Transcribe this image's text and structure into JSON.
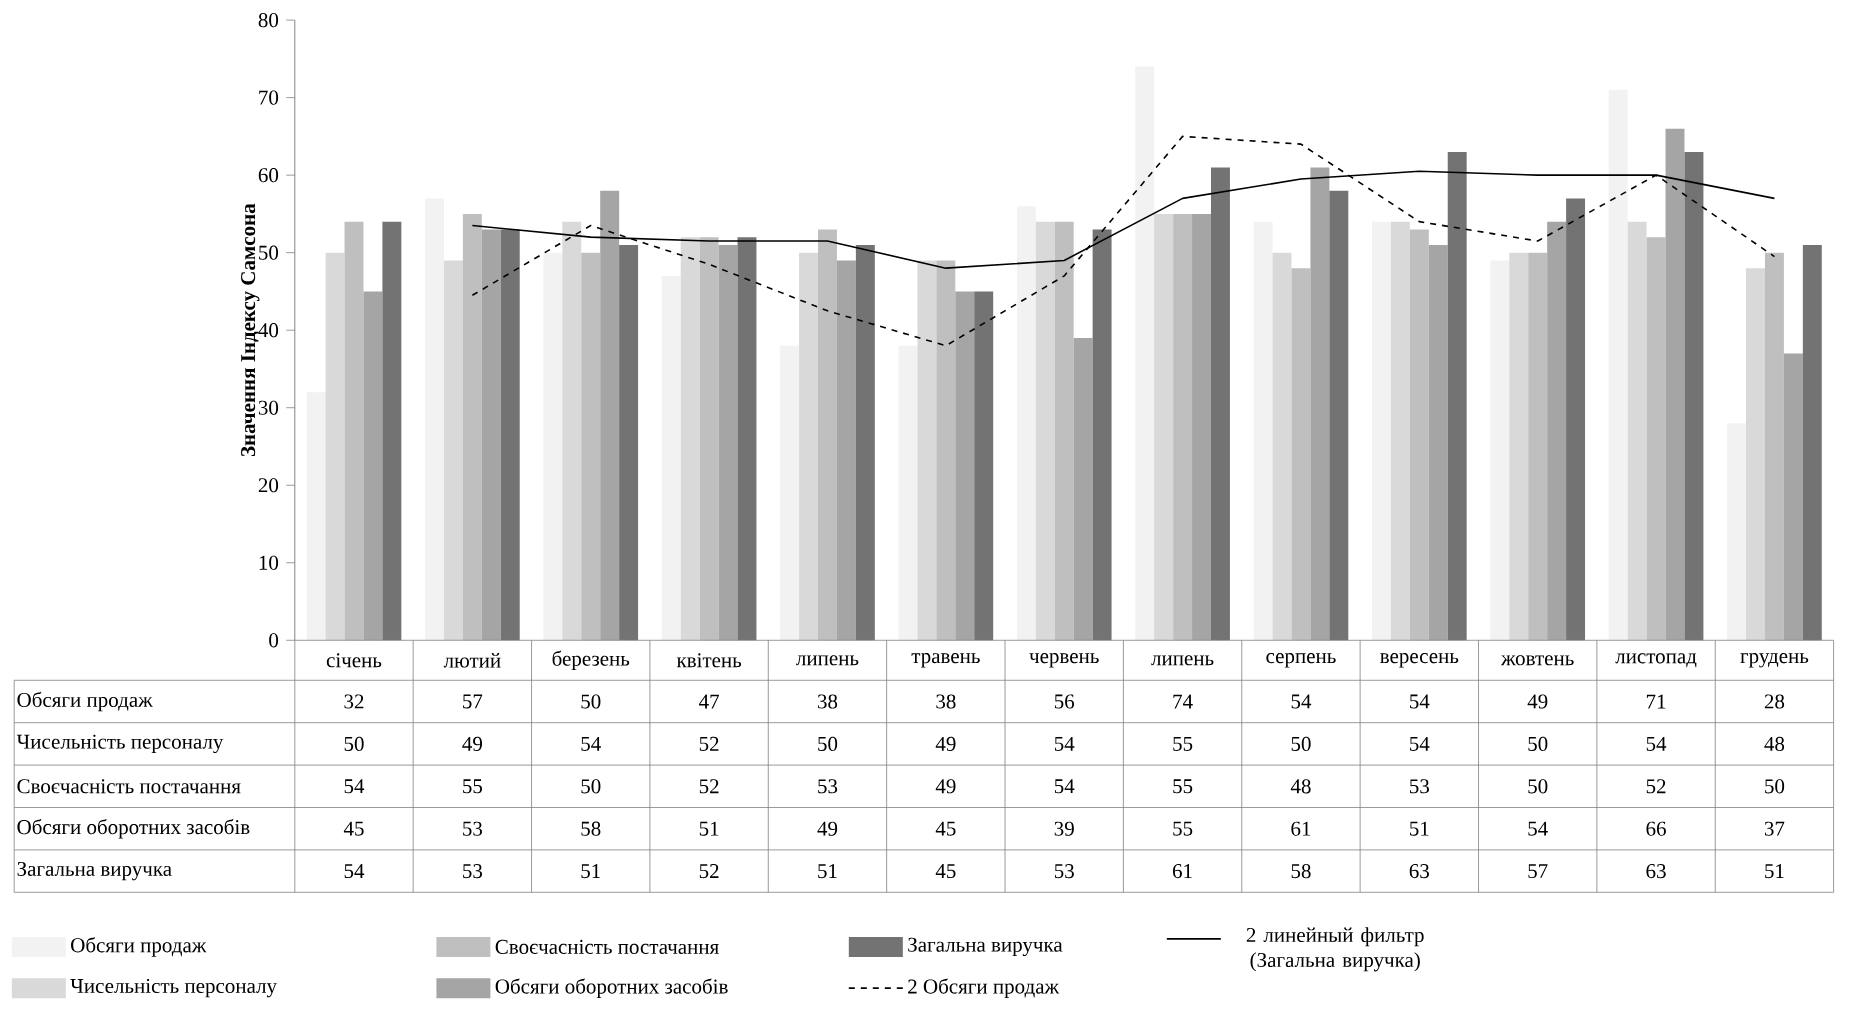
{
  "chart_data": {
    "type": "bar",
    "ylabel": "Значення Індексу  Самсона",
    "categories": [
      "січень",
      "лютий",
      "березень",
      "квітень",
      "липень",
      "травень",
      "червень",
      "липень",
      "серпень",
      "вересень",
      "жовтень",
      "листопад",
      "грудень"
    ],
    "series": [
      {
        "name": "Обсяги продаж",
        "color": "#f2f2f2",
        "values": [
          32,
          57,
          50,
          47,
          38,
          38,
          56,
          74,
          54,
          54,
          49,
          71,
          28
        ],
        "value_labels": [
          "32",
          "57",
          "50",
          "47",
          "38",
          "38",
          "56",
          "74",
          "54",
          "54",
          "49",
          "71",
          "28"
        ]
      },
      {
        "name": "Чисельність персоналу",
        "color": "#d9d9d9",
        "values": [
          50,
          49,
          54,
          52,
          50,
          49,
          54,
          55,
          50,
          54,
          50,
          54,
          48
        ],
        "value_labels": [
          "50",
          "49",
          "54",
          "52",
          "50",
          "49",
          "54",
          "55",
          "50",
          "54",
          "50",
          "54",
          "48"
        ]
      },
      {
        "name": "Своєчасність постачання",
        "color": "#bfbfbf",
        "values": [
          54,
          55,
          50,
          52,
          53,
          49,
          54,
          55,
          48,
          53,
          50,
          52,
          50
        ],
        "value_labels": [
          "54",
          "55",
          "50",
          "52",
          "53",
          "49",
          "54",
          "55",
          "48",
          "53",
          "50",
          "52",
          "50"
        ]
      },
      {
        "name": "Обсяги оборотних засобів",
        "color": "#a5a5a5",
        "values": [
          45,
          53,
          58,
          51,
          49,
          45,
          39,
          55,
          61,
          51,
          54,
          66,
          37
        ],
        "value_labels": [
          "45",
          "53",
          "58",
          "51",
          "49",
          "45",
          "39",
          "55",
          "61",
          "51",
          "54",
          "66",
          "37"
        ]
      },
      {
        "name": "Загальна виручка",
        "color": "#737373",
        "values": [
          54,
          53,
          51,
          52,
          51,
          45,
          53,
          61,
          58,
          63,
          57,
          63,
          51
        ],
        "value_labels": [
          "54",
          "53",
          "51",
          "52",
          "51",
          "45",
          "53",
          "61",
          "58",
          "63",
          "57",
          "63",
          "51"
        ]
      },
      {
        "name": "2 Обсяги продаж",
        "type": "line",
        "line_style": "dashed",
        "color": "#000000",
        "values": [
          null,
          44.5,
          53.5,
          48.5,
          42.5,
          38,
          47,
          65,
          64,
          54,
          51.5,
          60,
          49.5
        ]
      },
      {
        "name": "2 линейный фильтр (Загальна виручка)",
        "type": "line",
        "line_style": "solid",
        "color": "#000000",
        "values": [
          null,
          53.5,
          52,
          51.5,
          51.5,
          48,
          49,
          57,
          59.5,
          60.5,
          60,
          60,
          57
        ]
      }
    ],
    "ylim": [
      0,
      80
    ],
    "yticks": [
      0,
      10,
      20,
      30,
      40,
      50,
      60,
      70,
      80
    ],
    "legend": "bottom",
    "grid": false
  }
}
